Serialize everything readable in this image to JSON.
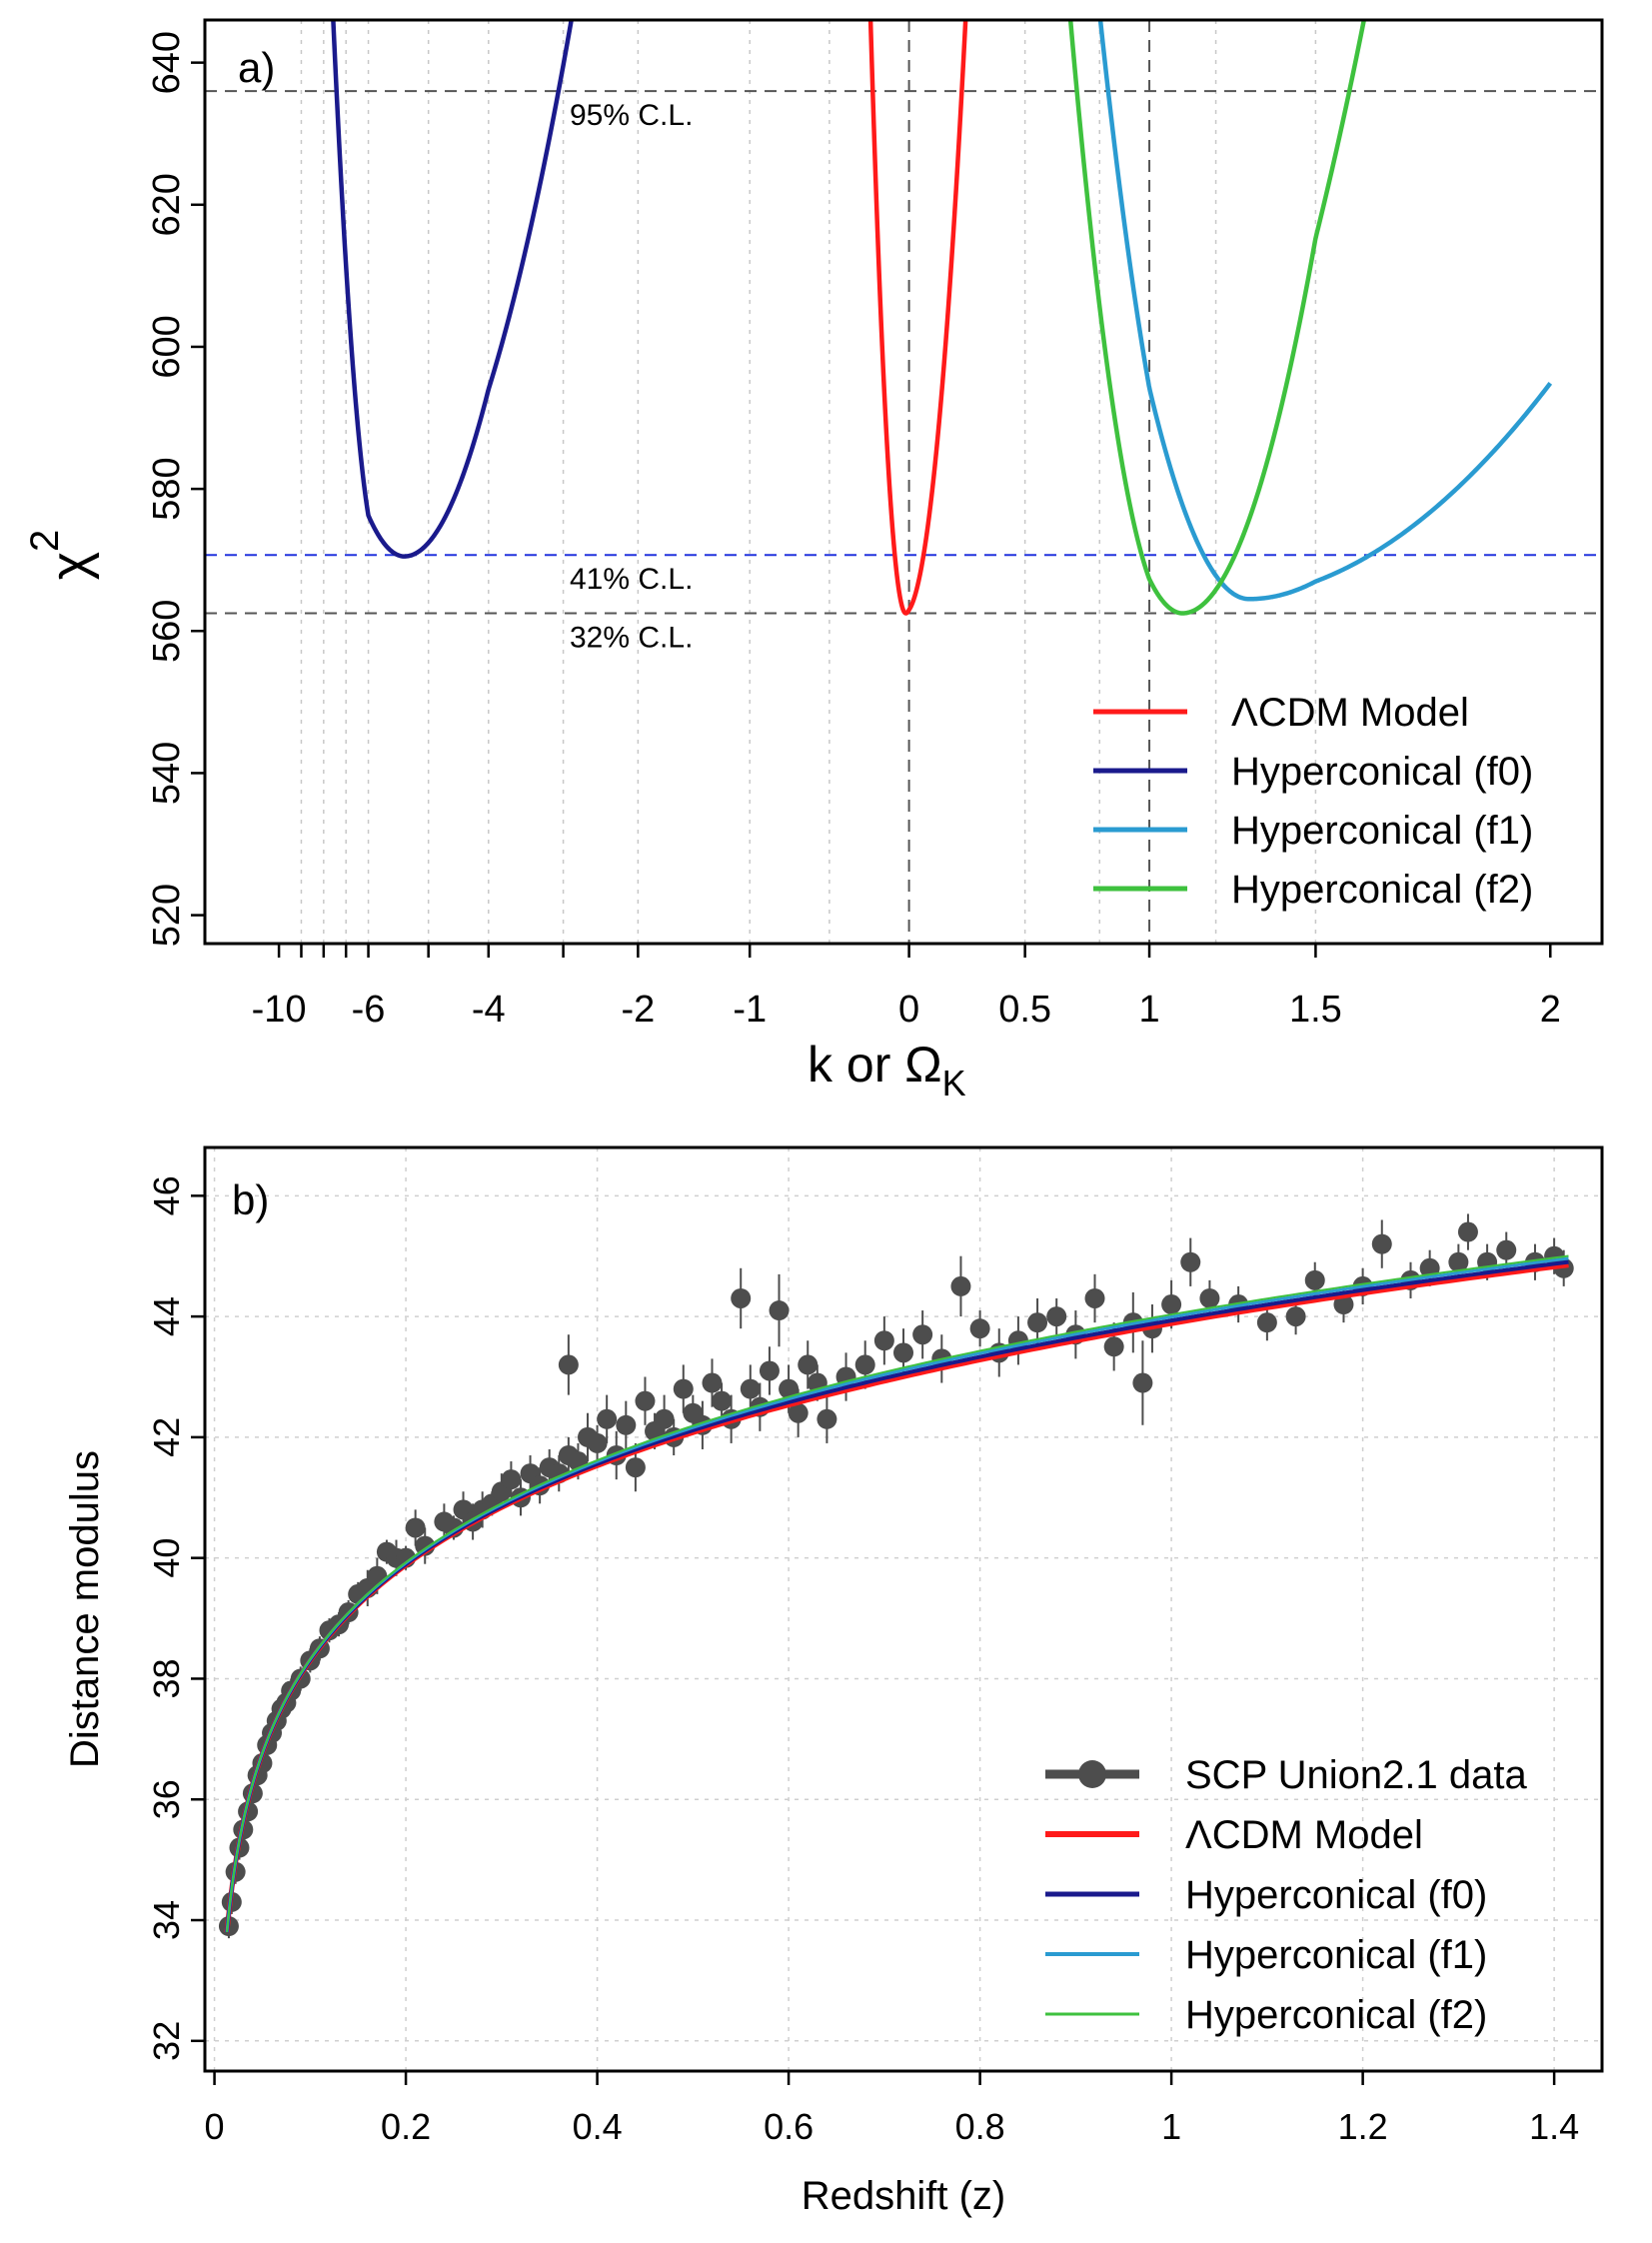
{
  "chart_data": [
    {
      "type": "line",
      "panel_label": "a)",
      "title": "",
      "xlabel": {
        "main": "k  or  Ω",
        "sub": "K"
      },
      "ylabel": {
        "main": "χ",
        "sup": "2"
      },
      "x_axis_note": "nonlinear (piecewise) x scale",
      "x_scale_knots": [
        [
          -13,
          0.0
        ],
        [
          -10,
          0.053
        ],
        [
          -6,
          0.117
        ],
        [
          -4,
          0.203
        ],
        [
          -2,
          0.31
        ],
        [
          -1,
          0.39
        ],
        [
          0,
          0.504
        ],
        [
          0.5,
          0.587
        ],
        [
          1,
          0.676
        ],
        [
          1.5,
          0.795
        ],
        [
          2,
          0.963
        ],
        [
          2.2,
          1.0
        ]
      ],
      "x_ticks": [
        {
          "v": -10,
          "label": "-10"
        },
        {
          "v": -9,
          "label": ""
        },
        {
          "v": -8,
          "label": ""
        },
        {
          "v": -7,
          "label": ""
        },
        {
          "v": -6,
          "label": "-6"
        },
        {
          "v": -5,
          "label": ""
        },
        {
          "v": -4,
          "label": "-4"
        },
        {
          "v": -3,
          "label": ""
        },
        {
          "v": -2,
          "label": "-2"
        },
        {
          "v": -1,
          "label": "-1"
        },
        {
          "v": 0,
          "label": "0"
        },
        {
          "v": 0.5,
          "label": "0.5"
        },
        {
          "v": 1,
          "label": "1"
        },
        {
          "v": 1.5,
          "label": "1.5"
        },
        {
          "v": 2,
          "label": "2"
        }
      ],
      "x_gridlines": [
        -9,
        -8,
        -7,
        -6,
        -5,
        -4,
        -3,
        -2,
        -1,
        -0.5,
        0.5,
        0.8,
        1.2,
        1.5
      ],
      "ylim": [
        516,
        646
      ],
      "y_ticks": [
        520,
        540,
        560,
        580,
        600,
        620,
        640
      ],
      "series": [
        {
          "name": "ΛCDM Model",
          "color": "#ff1a1a",
          "curve": {
            "min_x": -0.02,
            "min_y": 562.5,
            "left_a": 1700,
            "right_a": 1200
          }
        },
        {
          "name": "Hyperconical (f0)",
          "color": "#1a1a8c",
          "curve": {
            "min_x": -5.4,
            "min_y": 570.5,
            "left_a": 16,
            "right_a": 12
          }
        },
        {
          "name": "Hyperconical (f1)",
          "color": "#2a9bd1",
          "curve": {
            "min_x": 1.3,
            "min_y": 564.5,
            "left_a": 330,
            "right_a": 62
          },
          "x_end": 2.0
        },
        {
          "name": "Hyperconical (f2)",
          "color": "#3ec13e",
          "curve": {
            "min_x": 1.1,
            "min_y": 562.5,
            "left_a": 480,
            "right_a": 330
          }
        }
      ],
      "reference_lines": [
        {
          "y": 636,
          "label": "95% C.L.",
          "color": "#555555",
          "label_color": "#000000"
        },
        {
          "y": 570.7,
          "label": "41% C.L.",
          "color": "#2233dd",
          "label_color": "#1a1a8c"
        },
        {
          "y": 562.5,
          "label": "32% C.L.",
          "color": "#555555",
          "label_color": "#000000"
        }
      ],
      "vertical_lines": [
        0,
        1
      ],
      "legend_position": "bottom-right"
    },
    {
      "type": "scatter",
      "panel_label": "b)",
      "title": "",
      "xlabel": "Redshift (z)",
      "ylabel": "Distance modulus",
      "xlim": [
        -0.01,
        1.45
      ],
      "ylim": [
        31.5,
        46.8
      ],
      "x_ticks": [
        {
          "v": 0,
          "label": "0"
        },
        {
          "v": 0.2,
          "label": "0.2"
        },
        {
          "v": 0.4,
          "label": "0.4"
        },
        {
          "v": 0.6,
          "label": "0.6"
        },
        {
          "v": 0.8,
          "label": "0.8"
        },
        {
          "v": 1,
          "label": "1"
        },
        {
          "v": 1.2,
          "label": "1.2"
        },
        {
          "v": 1.4,
          "label": "1.4"
        }
      ],
      "y_ticks": [
        32,
        34,
        36,
        38,
        40,
        42,
        44,
        46
      ],
      "grid": true,
      "data_series": {
        "name": "SCP Union2.1 data",
        "color": "#4d4d4d",
        "points": [
          [
            0.015,
            33.9,
            0.2
          ],
          [
            0.018,
            34.3,
            0.2
          ],
          [
            0.022,
            34.8,
            0.2
          ],
          [
            0.026,
            35.2,
            0.2
          ],
          [
            0.03,
            35.5,
            0.2
          ],
          [
            0.035,
            35.8,
            0.2
          ],
          [
            0.04,
            36.1,
            0.2
          ],
          [
            0.045,
            36.4,
            0.2
          ],
          [
            0.05,
            36.6,
            0.2
          ],
          [
            0.055,
            36.9,
            0.2
          ],
          [
            0.06,
            37.1,
            0.2
          ],
          [
            0.065,
            37.3,
            0.2
          ],
          [
            0.07,
            37.5,
            0.2
          ],
          [
            0.075,
            37.6,
            0.2
          ],
          [
            0.08,
            37.8,
            0.2
          ],
          [
            0.09,
            38.0,
            0.2
          ],
          [
            0.1,
            38.3,
            0.2
          ],
          [
            0.11,
            38.5,
            0.2
          ],
          [
            0.12,
            38.8,
            0.2
          ],
          [
            0.13,
            38.9,
            0.2
          ],
          [
            0.14,
            39.1,
            0.2
          ],
          [
            0.15,
            39.4,
            0.2
          ],
          [
            0.16,
            39.5,
            0.3
          ],
          [
            0.17,
            39.7,
            0.3
          ],
          [
            0.18,
            40.1,
            0.2
          ],
          [
            0.19,
            40.0,
            0.3
          ],
          [
            0.2,
            40.0,
            0.2
          ],
          [
            0.21,
            40.5,
            0.3
          ],
          [
            0.22,
            40.2,
            0.3
          ],
          [
            0.24,
            40.6,
            0.3
          ],
          [
            0.25,
            40.5,
            0.2
          ],
          [
            0.26,
            40.8,
            0.3
          ],
          [
            0.27,
            40.6,
            0.3
          ],
          [
            0.28,
            40.8,
            0.3
          ],
          [
            0.29,
            40.9,
            0.2
          ],
          [
            0.3,
            41.1,
            0.3
          ],
          [
            0.31,
            41.3,
            0.3
          ],
          [
            0.32,
            41.0,
            0.3
          ],
          [
            0.33,
            41.4,
            0.3
          ],
          [
            0.34,
            41.2,
            0.3
          ],
          [
            0.35,
            41.5,
            0.3
          ],
          [
            0.36,
            41.4,
            0.3
          ],
          [
            0.37,
            41.7,
            0.3
          ],
          [
            0.37,
            43.2,
            0.5
          ],
          [
            0.38,
            41.6,
            0.3
          ],
          [
            0.39,
            42.0,
            0.4
          ],
          [
            0.4,
            41.9,
            0.3
          ],
          [
            0.41,
            42.3,
            0.4
          ],
          [
            0.42,
            41.7,
            0.4
          ],
          [
            0.43,
            42.2,
            0.4
          ],
          [
            0.44,
            41.5,
            0.4
          ],
          [
            0.45,
            42.6,
            0.4
          ],
          [
            0.46,
            42.1,
            0.3
          ],
          [
            0.47,
            42.3,
            0.4
          ],
          [
            0.48,
            42.0,
            0.3
          ],
          [
            0.49,
            42.8,
            0.4
          ],
          [
            0.5,
            42.4,
            0.3
          ],
          [
            0.51,
            42.2,
            0.4
          ],
          [
            0.52,
            42.9,
            0.4
          ],
          [
            0.53,
            42.6,
            0.3
          ],
          [
            0.54,
            42.3,
            0.4
          ],
          [
            0.55,
            44.3,
            0.5
          ],
          [
            0.56,
            42.8,
            0.4
          ],
          [
            0.57,
            42.5,
            0.4
          ],
          [
            0.58,
            43.1,
            0.4
          ],
          [
            0.59,
            44.1,
            0.6
          ],
          [
            0.6,
            42.8,
            0.4
          ],
          [
            0.61,
            42.4,
            0.4
          ],
          [
            0.62,
            43.2,
            0.4
          ],
          [
            0.63,
            42.9,
            0.3
          ],
          [
            0.64,
            42.3,
            0.4
          ],
          [
            0.66,
            43.0,
            0.4
          ],
          [
            0.68,
            43.2,
            0.4
          ],
          [
            0.7,
            43.6,
            0.4
          ],
          [
            0.72,
            43.4,
            0.4
          ],
          [
            0.74,
            43.7,
            0.4
          ],
          [
            0.76,
            43.3,
            0.4
          ],
          [
            0.78,
            44.5,
            0.5
          ],
          [
            0.8,
            43.8,
            0.3
          ],
          [
            0.82,
            43.4,
            0.4
          ],
          [
            0.84,
            43.6,
            0.4
          ],
          [
            0.86,
            43.9,
            0.4
          ],
          [
            0.88,
            44.0,
            0.3
          ],
          [
            0.9,
            43.7,
            0.4
          ],
          [
            0.92,
            44.3,
            0.4
          ],
          [
            0.94,
            43.5,
            0.4
          ],
          [
            0.96,
            43.9,
            0.5
          ],
          [
            0.97,
            42.9,
            0.7
          ],
          [
            0.98,
            43.8,
            0.4
          ],
          [
            1.0,
            44.2,
            0.4
          ],
          [
            1.02,
            44.9,
            0.4
          ],
          [
            1.04,
            44.3,
            0.3
          ],
          [
            1.07,
            44.2,
            0.3
          ],
          [
            1.1,
            43.9,
            0.3
          ],
          [
            1.13,
            44.0,
            0.3
          ],
          [
            1.15,
            44.6,
            0.3
          ],
          [
            1.18,
            44.2,
            0.3
          ],
          [
            1.2,
            44.5,
            0.3
          ],
          [
            1.22,
            45.2,
            0.4
          ],
          [
            1.25,
            44.6,
            0.3
          ],
          [
            1.27,
            44.8,
            0.3
          ],
          [
            1.3,
            44.9,
            0.3
          ],
          [
            1.31,
            45.4,
            0.3
          ],
          [
            1.33,
            44.9,
            0.3
          ],
          [
            1.35,
            45.1,
            0.3
          ],
          [
            1.38,
            44.9,
            0.3
          ],
          [
            1.4,
            45.0,
            0.3
          ],
          [
            1.41,
            44.8,
            0.3
          ]
        ]
      },
      "model_series": [
        {
          "name": "ΛCDM Model",
          "color": "#ff1a1a",
          "width": 5,
          "offset": -0.05
        },
        {
          "name": "Hyperconical (f0)",
          "color": "#1a1a8c",
          "width": 4,
          "offset": 0.0
        },
        {
          "name": "Hyperconical (f1)",
          "color": "#2a9bd1",
          "width": 3,
          "offset": 0.06
        },
        {
          "name": "Hyperconical (f2)",
          "color": "#3ec13e",
          "width": 2,
          "offset": 0.1
        }
      ],
      "legend_position": "bottom-right"
    }
  ]
}
